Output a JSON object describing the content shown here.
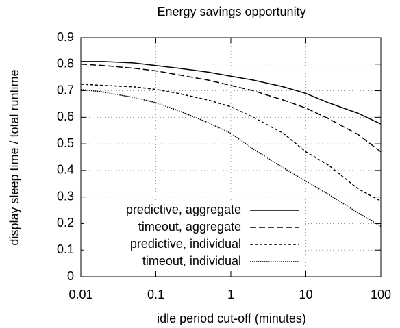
{
  "chart_data": {
    "type": "line",
    "title": "Energy savings opportunity",
    "xlabel": "idle period cut-off (minutes)",
    "ylabel": "display sleep time / total runtime",
    "xscale": "log",
    "x": [
      0.01,
      0.02,
      0.05,
      0.1,
      0.2,
      0.5,
      1,
      2,
      5,
      10,
      20,
      50,
      100
    ],
    "series": [
      {
        "name": "predictive, aggregate",
        "color": "#000000",
        "values": [
          0.81,
          0.81,
          0.805,
          0.795,
          0.785,
          0.77,
          0.755,
          0.74,
          0.715,
          0.69,
          0.655,
          0.615,
          0.575
        ]
      },
      {
        "name": "timeout, aggregate",
        "color": "#000000",
        "values": [
          0.8,
          0.795,
          0.785,
          0.775,
          0.76,
          0.74,
          0.72,
          0.7,
          0.665,
          0.635,
          0.595,
          0.535,
          0.47
        ]
      },
      {
        "name": "predictive, individual",
        "color": "#000000",
        "values": [
          0.725,
          0.72,
          0.715,
          0.705,
          0.69,
          0.665,
          0.64,
          0.6,
          0.54,
          0.47,
          0.42,
          0.33,
          0.285
        ]
      },
      {
        "name": "timeout, individual",
        "color": "#000000",
        "values": [
          0.705,
          0.695,
          0.675,
          0.655,
          0.625,
          0.58,
          0.54,
          0.48,
          0.41,
          0.36,
          0.31,
          0.24,
          0.19
        ]
      }
    ],
    "xlim": [
      0.01,
      100
    ],
    "xticks": [
      0.01,
      0.1,
      1,
      10,
      100
    ],
    "ylim": [
      0,
      0.9
    ],
    "yticks": [
      0,
      0.1,
      0.2,
      0.3,
      0.4,
      0.5,
      0.6,
      0.7,
      0.8,
      0.9
    ],
    "grid": true,
    "legend": "lower left"
  }
}
